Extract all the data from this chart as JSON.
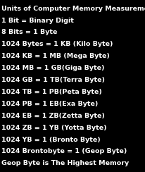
{
  "title": "Units of Computer Memory Measurements",
  "lines": [
    "1 Bit = Binary Digit",
    "8 Bits = 1 Byte",
    "1024 Bytes = 1 KB (Kilo Byte)",
    "1024 KB = 1 MB (Mega Byte)",
    "1024 MB = 1 GB(Giga Byte)",
    "1024 GB = 1 TB(Terra Byte)",
    "1024 TB = 1 PB(Peta Byte)",
    "1024 PB = 1 EB(Exa Byte)",
    "1024 EB = 1 ZB(Zetta Byte)",
    "1024 ZB = 1 YB (Yotta Byte)",
    "1024 YB = 1 (Bronto Byte)",
    "1024 Brontobyte = 1 (Geop Byte)",
    "Geop Byte is The Highest Memory"
  ],
  "background_color": "#000000",
  "title_color": "#ffffff",
  "text_color": "#ffffff",
  "title_fontsize": 6.8,
  "line_fontsize": 6.8,
  "title_fontweight": "bold",
  "line_fontweight": "bold",
  "fig_width": 2.07,
  "fig_height": 2.44,
  "dpi": 100
}
